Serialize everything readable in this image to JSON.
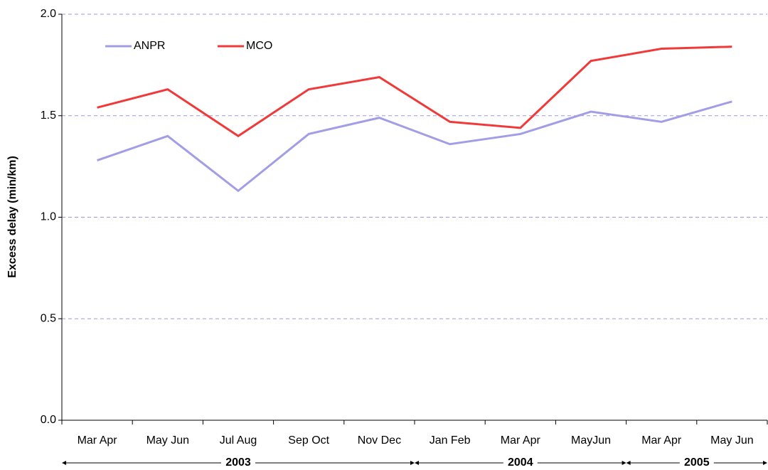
{
  "chart_data": {
    "type": "line",
    "y_label": "Excess delay (min/km)",
    "categories": [
      "Mar Apr",
      "May Jun",
      "Jul Aug",
      "Sep Oct",
      "Nov Dec",
      "Jan Feb",
      "Mar Apr",
      "MayJun",
      "Mar Apr",
      "May Jun"
    ],
    "groups": [
      {
        "label": "2003",
        "span": 5
      },
      {
        "label": "2004",
        "span": 3
      },
      {
        "label": "2005",
        "span": 2
      }
    ],
    "series": [
      {
        "name": "ANPR",
        "color": "#a29ee6",
        "values": [
          1.28,
          1.4,
          1.13,
          1.41,
          1.49,
          1.36,
          1.41,
          1.52,
          1.47,
          1.57
        ]
      },
      {
        "name": "MCO",
        "color": "#f03a3a",
        "values": [
          1.54,
          1.63,
          1.4,
          1.63,
          1.69,
          1.47,
          1.44,
          1.77,
          1.83,
          1.84
        ]
      }
    ],
    "ylim": [
      0,
      2
    ],
    "yticks": [
      {
        "value": 0,
        "label": "0.0"
      },
      0.5,
      {
        "value": 1,
        "label": "1.0"
      },
      1.5,
      {
        "value": 2,
        "label": "2.0"
      }
    ],
    "grid": true,
    "legend": "top-left"
  }
}
